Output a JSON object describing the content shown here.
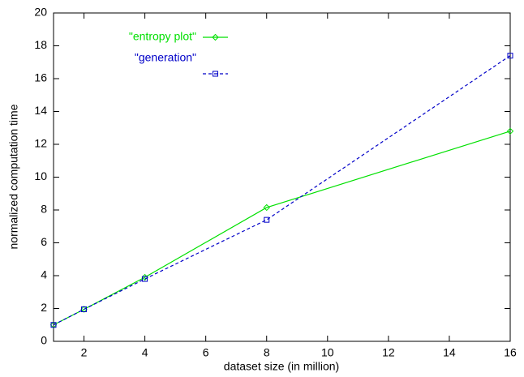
{
  "chart_data": {
    "type": "line",
    "x_label": "dataset size (in million)",
    "y_label": "normalized computation time",
    "x": [
      1,
      2,
      4,
      8,
      16
    ],
    "series": [
      {
        "name": "\"entropy plot\"",
        "color": "#00e000",
        "dashed": false,
        "marker": "diamond",
        "values": [
          1,
          1.95,
          3.9,
          8.15,
          12.8
        ]
      },
      {
        "name": "\"generation\"",
        "color": "#0000c8",
        "dashed": true,
        "marker": "square",
        "values": [
          1,
          1.95,
          3.8,
          7.4,
          17.4
        ]
      }
    ],
    "xlim": [
      1,
      16
    ],
    "xticks": [
      2,
      4,
      6,
      8,
      10,
      12,
      14,
      16
    ],
    "ylim": [
      0,
      20
    ],
    "yticks": [
      0,
      2,
      4,
      6,
      8,
      10,
      12,
      14,
      16,
      18,
      20
    ],
    "grid": false
  }
}
